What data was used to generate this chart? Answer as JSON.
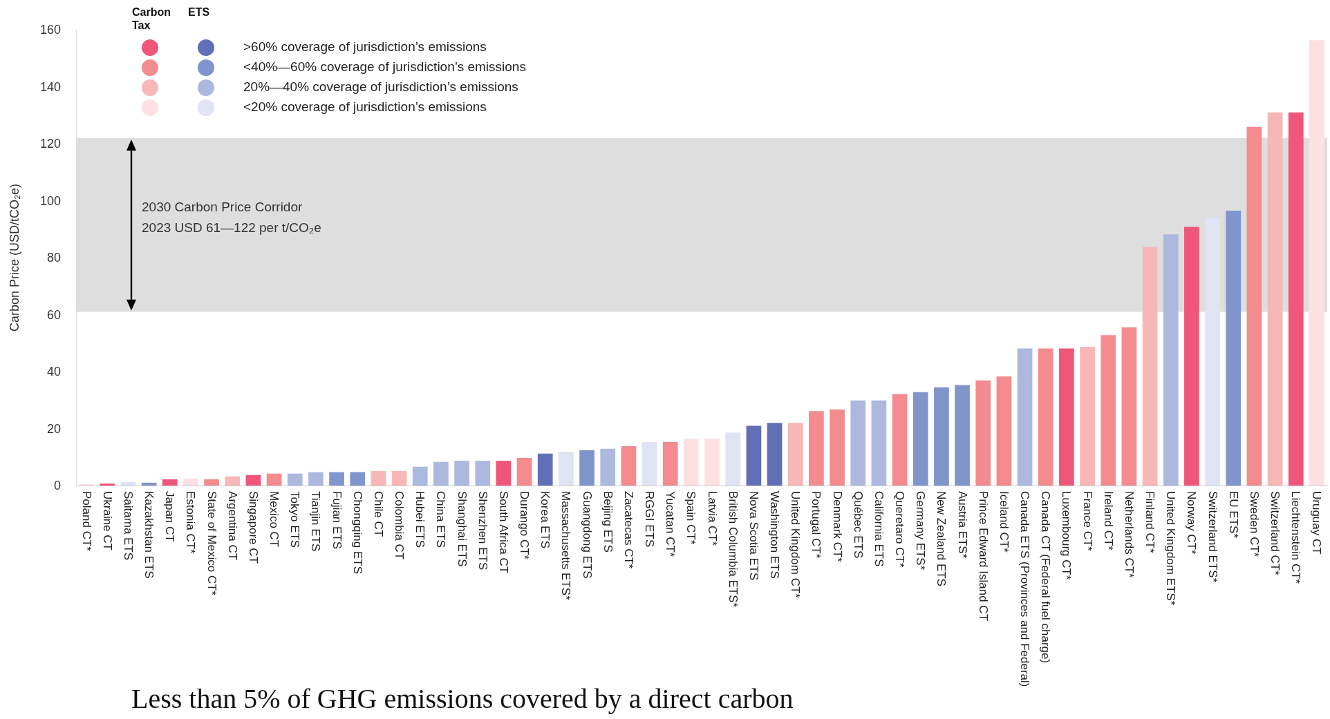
{
  "chart_data": {
    "type": "bar",
    "stacked": true,
    "ylabel": "Carbon Price (USD/tCO₂e)",
    "ylim": [
      0,
      160
    ],
    "yticks": [
      0,
      20,
      40,
      60,
      80,
      100,
      120,
      140,
      160
    ],
    "grid": false,
    "legend": "top left",
    "categories": [
      "Poland CT*",
      "Ukraine CT",
      "Saitama ETS",
      "Kazakhstan ETS",
      "Japan CT",
      "Estonia CT*",
      "State of Mexico CT*",
      "Argentina CT",
      "Singapore CT",
      "Mexico CT",
      "Tokyo ETS",
      "Tianjin ETS",
      "Fujian ETS",
      "Chongqing ETS",
      "Chile CT",
      "Colombia CT",
      "Hubei ETS",
      "China ETS",
      "Shanghai ETS",
      "Shenzhen ETS",
      "South Africa CT",
      "Durango CT*",
      "Korea ETS",
      "Massachusetts ETS*",
      "Guangdong ETS",
      "Beijing ETS",
      "Zacatecas CT*",
      "RGGI ETS",
      "Yucatan CT*",
      "Spain CT*",
      "Latvia CT*",
      "British Columbia ETS*",
      "Nova Scotia ETS",
      "Washington ETS",
      "United Kingdom CT*",
      "Portugal CT*",
      "Denmark CT*",
      "Québec ETS",
      "California ETS",
      "Queretaro CT*",
      "Germany ETS*",
      "New Zealand ETS",
      "Austria ETS*",
      "Prince Edward Island CT",
      "Iceland CT*",
      "Canada ETS (Provinces and Federal)",
      "Canada CT (Federal fuel charge)",
      "Luxembourg CT*",
      "France CT*",
      "Ireland CT*",
      "Netherlands CT*",
      "Finland CT*",
      "United Kingdom ETS*",
      "Norway CT*",
      "Switzerland ETS*",
      "EU ETS*",
      "Sweden CT*",
      "Switzerland CT*",
      "Liechtenstein CT*",
      "Uruguay CT"
    ],
    "series": [
      {
        "color": "#ef5679",
        "values": [
          null,
          0.7,
          null,
          null,
          2.2,
          null,
          null,
          null,
          3.7,
          null,
          null,
          null,
          null,
          null,
          null,
          null,
          null,
          null,
          null,
          null,
          8.7,
          null,
          null,
          null,
          null,
          null,
          null,
          null,
          null,
          null,
          null,
          null,
          null,
          null,
          null,
          null,
          null,
          null,
          null,
          null,
          null,
          null,
          null,
          null,
          null,
          null,
          null,
          48.1,
          null,
          null,
          null,
          null,
          null,
          90.8,
          null,
          null,
          null,
          null,
          131.0,
          null
        ]
      },
      {
        "color": "#f48b8f",
        "values": [
          null,
          null,
          null,
          null,
          null,
          null,
          2.2,
          null,
          null,
          4.2,
          null,
          null,
          null,
          null,
          null,
          null,
          null,
          null,
          null,
          null,
          null,
          9.7,
          null,
          null,
          null,
          null,
          13.8,
          null,
          15.3,
          null,
          null,
          null,
          null,
          null,
          null,
          26.1,
          26.7,
          null,
          null,
          32.1,
          null,
          null,
          null,
          36.9,
          38.3,
          null,
          48.1,
          null,
          null,
          52.8,
          55.5,
          null,
          null,
          null,
          null,
          null,
          125.9,
          null,
          null,
          null
        ]
      },
      {
        "color": "#f8b7b7",
        "values": [
          null,
          null,
          null,
          null,
          null,
          null,
          null,
          3.2,
          null,
          null,
          null,
          null,
          null,
          null,
          5.1,
          5.1,
          null,
          null,
          null,
          null,
          null,
          null,
          null,
          null,
          null,
          null,
          null,
          null,
          null,
          null,
          null,
          null,
          null,
          null,
          22.0,
          null,
          null,
          null,
          null,
          null,
          null,
          null,
          null,
          null,
          null,
          null,
          null,
          null,
          48.7,
          null,
          null,
          83.7,
          null,
          null,
          null,
          null,
          null,
          131.0,
          null,
          null
        ]
      },
      {
        "color": "#fde1e2",
        "values": [
          0.5,
          null,
          null,
          null,
          null,
          2.5,
          null,
          null,
          null,
          null,
          null,
          null,
          null,
          null,
          null,
          null,
          null,
          null,
          null,
          null,
          null,
          null,
          null,
          null,
          null,
          null,
          null,
          null,
          null,
          16.4,
          16.4,
          null,
          null,
          null,
          null,
          null,
          null,
          null,
          null,
          null,
          null,
          null,
          null,
          null,
          null,
          null,
          null,
          null,
          null,
          null,
          null,
          null,
          null,
          null,
          null,
          null,
          null,
          null,
          null,
          156.3
        ]
      },
      {
        "name": ">60% coverage of jurisdiction’s emissions",
        "color": "#6170b6",
        "values": [
          null,
          null,
          null,
          null,
          null,
          null,
          null,
          null,
          null,
          null,
          null,
          null,
          null,
          null,
          null,
          null,
          null,
          null,
          null,
          null,
          null,
          null,
          11.2,
          null,
          null,
          null,
          null,
          null,
          null,
          null,
          null,
          null,
          21.0,
          22.0,
          null,
          null,
          null,
          null,
          null,
          null,
          null,
          null,
          null,
          null,
          null,
          null,
          null,
          null,
          null,
          null,
          null,
          null,
          null,
          null,
          null,
          null,
          null,
          null,
          null,
          null
        ]
      },
      {
        "name": "<40%—60% coverage of jurisdiction’s emissions",
        "color": "#7f95cc",
        "values": [
          null,
          null,
          null,
          1.0,
          null,
          null,
          null,
          null,
          null,
          null,
          null,
          null,
          4.7,
          4.7,
          null,
          null,
          null,
          null,
          null,
          null,
          null,
          null,
          null,
          null,
          12.4,
          null,
          null,
          null,
          null,
          null,
          null,
          null,
          null,
          null,
          null,
          null,
          null,
          null,
          null,
          null,
          32.8,
          34.5,
          35.3,
          null,
          null,
          null,
          null,
          null,
          null,
          null,
          null,
          null,
          null,
          null,
          null,
          96.5,
          null,
          null,
          null,
          null
        ]
      },
      {
        "name": "20%—40% coverage of jurisdiction’s emissions",
        "color": "#adb8df",
        "values": [
          null,
          null,
          null,
          null,
          null,
          null,
          null,
          null,
          null,
          null,
          4.2,
          4.7,
          null,
          null,
          null,
          null,
          6.6,
          8.3,
          8.7,
          8.7,
          null,
          null,
          null,
          null,
          null,
          12.9,
          null,
          null,
          null,
          null,
          null,
          null,
          null,
          null,
          null,
          null,
          null,
          29.9,
          29.9,
          null,
          null,
          null,
          null,
          null,
          null,
          48.1,
          null,
          null,
          null,
          null,
          null,
          null,
          88.2,
          null,
          null,
          null,
          null,
          null,
          null,
          null
        ]
      },
      {
        "name": "<20% coverage of jurisdiction’s emissions",
        "color": "#dfe3f3",
        "values": [
          null,
          null,
          1.3,
          null,
          null,
          null,
          null,
          null,
          null,
          null,
          null,
          null,
          null,
          null,
          null,
          null,
          null,
          null,
          null,
          null,
          null,
          null,
          null,
          11.9,
          null,
          null,
          null,
          15.3,
          null,
          null,
          null,
          18.6,
          null,
          null,
          null,
          null,
          null,
          null,
          null,
          null,
          null,
          null,
          null,
          null,
          null,
          null,
          null,
          null,
          null,
          null,
          null,
          null,
          null,
          null,
          93.8,
          null,
          null,
          null,
          null,
          null
        ]
      }
    ],
    "bands": [
      {
        "axis": "y",
        "from": 61,
        "to": 122,
        "label": "2030 Carbon Price Corridor\n2023 USD 61—122 per t/CO₂e",
        "color": "#dedede"
      }
    ],
    "annotations": [
      "Carbon Tax",
      "ETS",
      "Less than 5% of GHG emissions covered by a direct carbon"
    ]
  }
}
